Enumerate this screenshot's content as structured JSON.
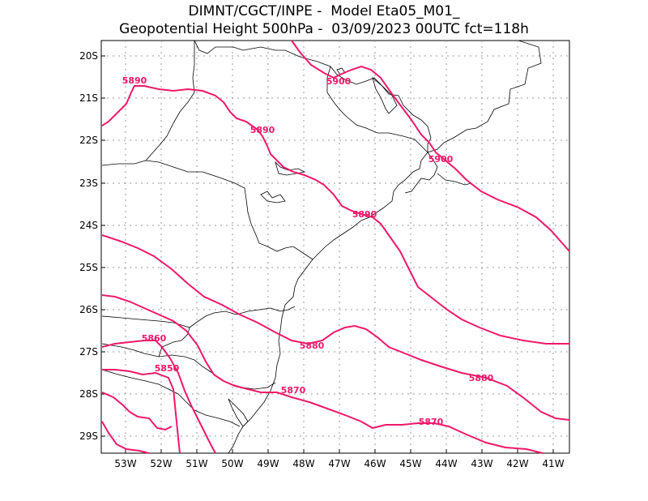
{
  "title": {
    "line1": "DIMNT/CGCT/INPE -  Model Eta05_M01_",
    "line2": "Geopotential Height 500hPa -  03/09/2023 00UTC fct=118h"
  },
  "map": {
    "lat_labels": [
      "20S",
      "21S",
      "22S",
      "23S",
      "24S",
      "25S",
      "26S",
      "27S",
      "28S",
      "29S"
    ],
    "lon_labels": [
      "53W",
      "52W",
      "51W",
      "50W",
      "49W",
      "48W",
      "47W",
      "46W",
      "45W",
      "44W",
      "43W",
      "42W",
      "41W"
    ],
    "lat_range": [
      -29.4,
      -19.6
    ],
    "lon_range": [
      -53.6,
      -40.5
    ],
    "contour_color": "#f0186a",
    "contour_labels": [
      "5890",
      "5900",
      "5890",
      "5900",
      "5890",
      "5880",
      "5860",
      "5850",
      "5870",
      "5880",
      "5870"
    ]
  }
}
